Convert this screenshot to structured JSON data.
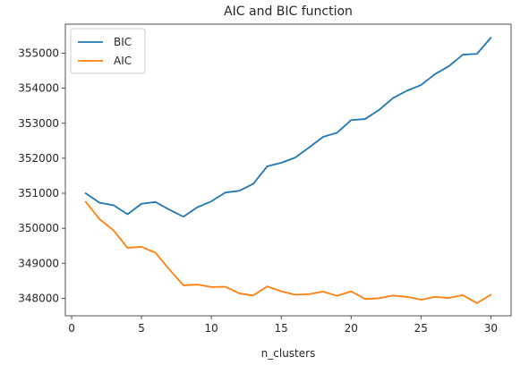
{
  "chart_data": {
    "type": "line",
    "title": "AIC and BIC function",
    "xlabel": "n_clusters",
    "ylabel": "",
    "x": [
      1,
      2,
      3,
      4,
      5,
      6,
      7,
      8,
      9,
      10,
      11,
      12,
      13,
      14,
      15,
      16,
      17,
      18,
      19,
      20,
      21,
      22,
      23,
      24,
      25,
      26,
      27,
      28,
      29,
      30
    ],
    "series": [
      {
        "name": "BIC",
        "color": "#1f77b4",
        "values": [
          351000,
          350730,
          350660,
          350400,
          350700,
          350750,
          350530,
          350330,
          350600,
          350770,
          351020,
          351070,
          351270,
          351770,
          351870,
          352020,
          352310,
          352610,
          352730,
          353090,
          353120,
          353380,
          353720,
          353930,
          354090,
          354400,
          354630,
          354960,
          354980,
          355440
        ]
      },
      {
        "name": "AIC",
        "color": "#ff7f0e",
        "values": [
          350760,
          350260,
          349940,
          349440,
          349470,
          349300,
          348820,
          348370,
          348390,
          348320,
          348330,
          348140,
          348080,
          348340,
          348200,
          348100,
          348120,
          348190,
          348070,
          348200,
          347980,
          348000,
          348080,
          348040,
          347960,
          348040,
          348010,
          348090,
          347860,
          348100
        ]
      }
    ],
    "xticks": [
      0,
      5,
      10,
      15,
      20,
      25,
      30
    ],
    "xtick_labels": [
      "0",
      "5",
      "10",
      "15",
      "20",
      "25",
      "30"
    ],
    "yticks": [
      348000,
      349000,
      350000,
      351000,
      352000,
      353000,
      354000,
      355000
    ],
    "ytick_labels": [
      "348000",
      "349000",
      "350000",
      "351000",
      "352000",
      "353000",
      "354000",
      "355000"
    ],
    "xlim": [
      -0.45,
      31.45
    ],
    "ylim": [
      347500,
      355830
    ],
    "grid": false,
    "legend_position": "top-left"
  }
}
